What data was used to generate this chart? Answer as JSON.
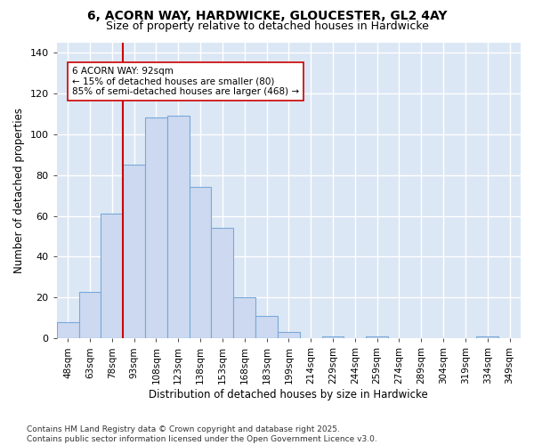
{
  "title": "6, ACORN WAY, HARDWICKE, GLOUCESTER, GL2 4AY",
  "subtitle": "Size of property relative to detached houses in Hardwicke",
  "xlabel": "Distribution of detached houses by size in Hardwicke",
  "ylabel": "Number of detached properties",
  "categories": [
    "48sqm",
    "63sqm",
    "78sqm",
    "93sqm",
    "108sqm",
    "123sqm",
    "138sqm",
    "153sqm",
    "168sqm",
    "183sqm",
    "199sqm",
    "214sqm",
    "229sqm",
    "244sqm",
    "259sqm",
    "274sqm",
    "289sqm",
    "304sqm",
    "319sqm",
    "334sqm",
    "349sqm"
  ],
  "values": [
    8,
    23,
    61,
    85,
    108,
    109,
    74,
    54,
    20,
    11,
    3,
    0,
    1,
    0,
    1,
    0,
    0,
    0,
    0,
    1,
    0
  ],
  "bar_color": "#ccd9f0",
  "bar_edge_color": "#7aa8d8",
  "fig_bg_color": "#ffffff",
  "plot_bg_color": "#dce7f5",
  "grid_color": "#ffffff",
  "vline_x_index": 3,
  "vline_color": "#cc0000",
  "annotation_text": "6 ACORN WAY: 92sqm\n← 15% of detached houses are smaller (80)\n85% of semi-detached houses are larger (468) →",
  "annotation_box_color": "#ffffff",
  "annotation_box_edge": "#cc0000",
  "footer_text": "Contains HM Land Registry data © Crown copyright and database right 2025.\nContains public sector information licensed under the Open Government Licence v3.0.",
  "ylim": [
    0,
    145
  ],
  "yticks": [
    0,
    20,
    40,
    60,
    80,
    100,
    120,
    140
  ]
}
